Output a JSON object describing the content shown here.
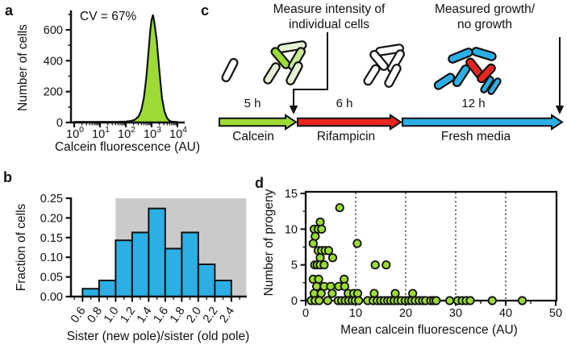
{
  "colors": {
    "outline": "#111111",
    "green": "#9CDB35",
    "mid_green": "#C9E896",
    "pale_green": "#E7F2D5",
    "blue": "#2CAFE5",
    "red": "#E8251F",
    "white": "#FFFFFF",
    "gray_region": "#CACACA"
  },
  "panels": {
    "a": {
      "label": "a",
      "annotation": "CV = 67%",
      "ylabel": "Number of cells",
      "xlabel": "Calcein fluorescence (AU)"
    },
    "b": {
      "label": "b",
      "ylabel": "Fraction of cells",
      "xlabel": "Sister (new pole)/sister (old pole)"
    },
    "c": {
      "label": "c",
      "callout_measure": "Measure intensity of\nindividual cells",
      "callout_growth": "Measured growth/\nno growth",
      "phases": [
        {
          "name": "Calcein",
          "duration": "5 h",
          "color": "#9CDB35"
        },
        {
          "name": "Rifampicin",
          "duration": "6 h",
          "color": "#E8251F"
        },
        {
          "name": "Fresh media",
          "duration": "12 h",
          "color": "#2CAFE5"
        }
      ],
      "cell_types": [
        {
          "name": "unstained-cell",
          "color": "#FFFFFF"
        },
        {
          "name": "calcein-bright-cell",
          "color": "#9CDB35"
        },
        {
          "name": "calcein-dim-cell",
          "color": "#E7F2D5"
        },
        {
          "name": "growing-cell",
          "color": "#2CAFE5"
        },
        {
          "name": "non-growing-cell",
          "color": "#E8251F"
        }
      ]
    },
    "d": {
      "label": "d",
      "ylabel": "Number of progeny",
      "xlabel": "Mean calcein fluorescence (AU)"
    }
  },
  "chart_data": [
    {
      "panel": "a",
      "type": "area",
      "title": "",
      "annotation": "CV = 67%",
      "xlabel": "Calcein fluorescence (AU)",
      "ylabel": "Number of cells",
      "x_scale": "log10",
      "x_tick_exponents": [
        0,
        1,
        2,
        3,
        4
      ],
      "ylim": [
        0,
        720
      ],
      "y_ticks": [
        0,
        200,
        400,
        600
      ],
      "y_minor_ticks": [
        100,
        300,
        500,
        700
      ],
      "peak_log10x": 3.05,
      "peak_count": 695,
      "fill_color": "#9CDB35",
      "curve_log10x_counts": [
        [
          0,
          4
        ],
        [
          1.0,
          4
        ],
        [
          1.6,
          4
        ],
        [
          2.0,
          6
        ],
        [
          2.2,
          10
        ],
        [
          2.35,
          18
        ],
        [
          2.5,
          40
        ],
        [
          2.6,
          80
        ],
        [
          2.7,
          160
        ],
        [
          2.8,
          300
        ],
        [
          2.9,
          500
        ],
        [
          2.95,
          600
        ],
        [
          3.0,
          665
        ],
        [
          3.05,
          695
        ],
        [
          3.1,
          655
        ],
        [
          3.2,
          530
        ],
        [
          3.3,
          335
        ],
        [
          3.4,
          160
        ],
        [
          3.5,
          70
        ],
        [
          3.6,
          28
        ],
        [
          3.7,
          10
        ],
        [
          3.8,
          5
        ],
        [
          4.0,
          3
        ]
      ]
    },
    {
      "panel": "b",
      "type": "bar",
      "xlabel": "Sister (new pole)/sister (old pole)",
      "ylabel": "Fraction of cells",
      "bin_edges": [
        0.6,
        0.8,
        1.0,
        1.2,
        1.4,
        1.6,
        1.8,
        2.0,
        2.2,
        2.4
      ],
      "values": [
        0.02,
        0.041,
        0.143,
        0.163,
        0.224,
        0.122,
        0.163,
        0.082,
        0.041
      ],
      "x_ticks": [
        0.6,
        0.8,
        1.0,
        1.2,
        1.4,
        1.6,
        1.8,
        2.0,
        2.2,
        2.4
      ],
      "xlim": [
        0.46,
        2.58
      ],
      "ylim": [
        0,
        0.25
      ],
      "y_ticks": [
        0,
        0.05,
        0.1,
        0.15,
        0.2,
        0.25
      ],
      "bar_color": "#2CAFE5",
      "shaded_region": {
        "x_start": 1.0,
        "x_end": 2.58,
        "color": "#CACACA"
      }
    },
    {
      "panel": "d",
      "type": "scatter",
      "xlabel": "Mean calcein fluorescence (AU)",
      "ylabel": "Number of progeny",
      "xlim": [
        0,
        50
      ],
      "ylim": [
        0,
        15
      ],
      "x_ticks": [
        0,
        10,
        20,
        30,
        40,
        50
      ],
      "x_minor_ticks": [
        5,
        15,
        25,
        35,
        45
      ],
      "y_ticks": [
        0,
        5,
        10,
        15
      ],
      "y_minor_ticks": [
        2.5,
        7.5,
        12.5
      ],
      "gridlines_x": [
        10,
        20,
        30,
        40
      ],
      "grid_style": "dotted-vertical",
      "marker_color": "#9CDB35",
      "points": [
        [
          6.8,
          13
        ],
        [
          2.9,
          11
        ],
        [
          1.7,
          10
        ],
        [
          2.5,
          10
        ],
        [
          3.2,
          10
        ],
        [
          1.9,
          9
        ],
        [
          1.5,
          8
        ],
        [
          10.3,
          8
        ],
        [
          2.5,
          7
        ],
        [
          3.2,
          7
        ],
        [
          3.9,
          7
        ],
        [
          4.6,
          7
        ],
        [
          2.9,
          6
        ],
        [
          5.4,
          6
        ],
        [
          1.8,
          5
        ],
        [
          2.3,
          5
        ],
        [
          2.9,
          5
        ],
        [
          3.7,
          5
        ],
        [
          13.9,
          5
        ],
        [
          16.1,
          5
        ],
        [
          1.5,
          3
        ],
        [
          2.6,
          3
        ],
        [
          7.7,
          3
        ],
        [
          2.2,
          2
        ],
        [
          3.7,
          2
        ],
        [
          5.0,
          2
        ],
        [
          6.6,
          2
        ],
        [
          7.8,
          2
        ],
        [
          1.7,
          1
        ],
        [
          3.1,
          1
        ],
        [
          5.3,
          1
        ],
        [
          8.5,
          1
        ],
        [
          9.6,
          1
        ],
        [
          10.4,
          1
        ],
        [
          13.7,
          1
        ],
        [
          17.9,
          1
        ],
        [
          21.4,
          1
        ],
        [
          1.1,
          0
        ],
        [
          1.9,
          0
        ],
        [
          2.7,
          0
        ],
        [
          4.4,
          0
        ],
        [
          6.5,
          0
        ],
        [
          7.2,
          0
        ],
        [
          7.9,
          0
        ],
        [
          8.6,
          0
        ],
        [
          9.3,
          0
        ],
        [
          9.9,
          0
        ],
        [
          10.6,
          0
        ],
        [
          12.4,
          0
        ],
        [
          13.5,
          0
        ],
        [
          14.3,
          0
        ],
        [
          15.0,
          0
        ],
        [
          15.7,
          0
        ],
        [
          16.4,
          0
        ],
        [
          17.0,
          0
        ],
        [
          17.7,
          0
        ],
        [
          18.4,
          0
        ],
        [
          19.1,
          0
        ],
        [
          19.9,
          0
        ],
        [
          20.6,
          0
        ],
        [
          21.2,
          0
        ],
        [
          21.9,
          0
        ],
        [
          22.7,
          0
        ],
        [
          23.4,
          0
        ],
        [
          24.0,
          0
        ],
        [
          25.0,
          0
        ],
        [
          25.6,
          0
        ],
        [
          26.1,
          0
        ],
        [
          28.8,
          0
        ],
        [
          30.4,
          0
        ],
        [
          31.3,
          0
        ],
        [
          32.1,
          0
        ],
        [
          32.9,
          0
        ],
        [
          37.3,
          0
        ],
        [
          43.3,
          0
        ]
      ]
    }
  ]
}
